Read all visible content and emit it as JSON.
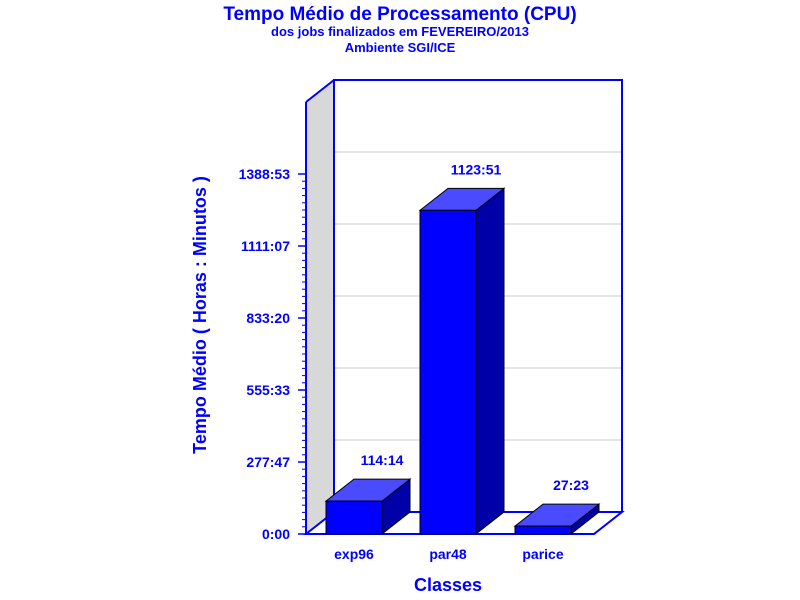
{
  "chart_data": {
    "type": "bar",
    "title": "Tempo Médio de Processamento (CPU)",
    "subtitle": "dos jobs finalizados em FEVEREIRO/2013",
    "subtitle2": "Ambiente SGI/ICE",
    "xlabel": "Classes",
    "ylabel": "Tempo Médio ( Horas : Minutos )",
    "categories": [
      "exp96",
      "par48",
      "parice"
    ],
    "values": [
      114.233,
      1123.85,
      27.383
    ],
    "value_labels": [
      "114:14",
      "1123:51",
      "27:23"
    ],
    "y_ticks": [
      "0:00",
      "277:47",
      "555:33",
      "833:20",
      "1111:07",
      "1388:53"
    ],
    "ylim": [
      0,
      1500
    ],
    "grid": true,
    "legend": "none",
    "colors": {
      "bar_front": "#0000ff",
      "bar_top": "#4a4aff",
      "bar_side": "#0000a8",
      "wall": "#d8d8d8",
      "frame": "#0000ff",
      "text": "#0000ff",
      "grid": "#c8c8c8"
    }
  }
}
